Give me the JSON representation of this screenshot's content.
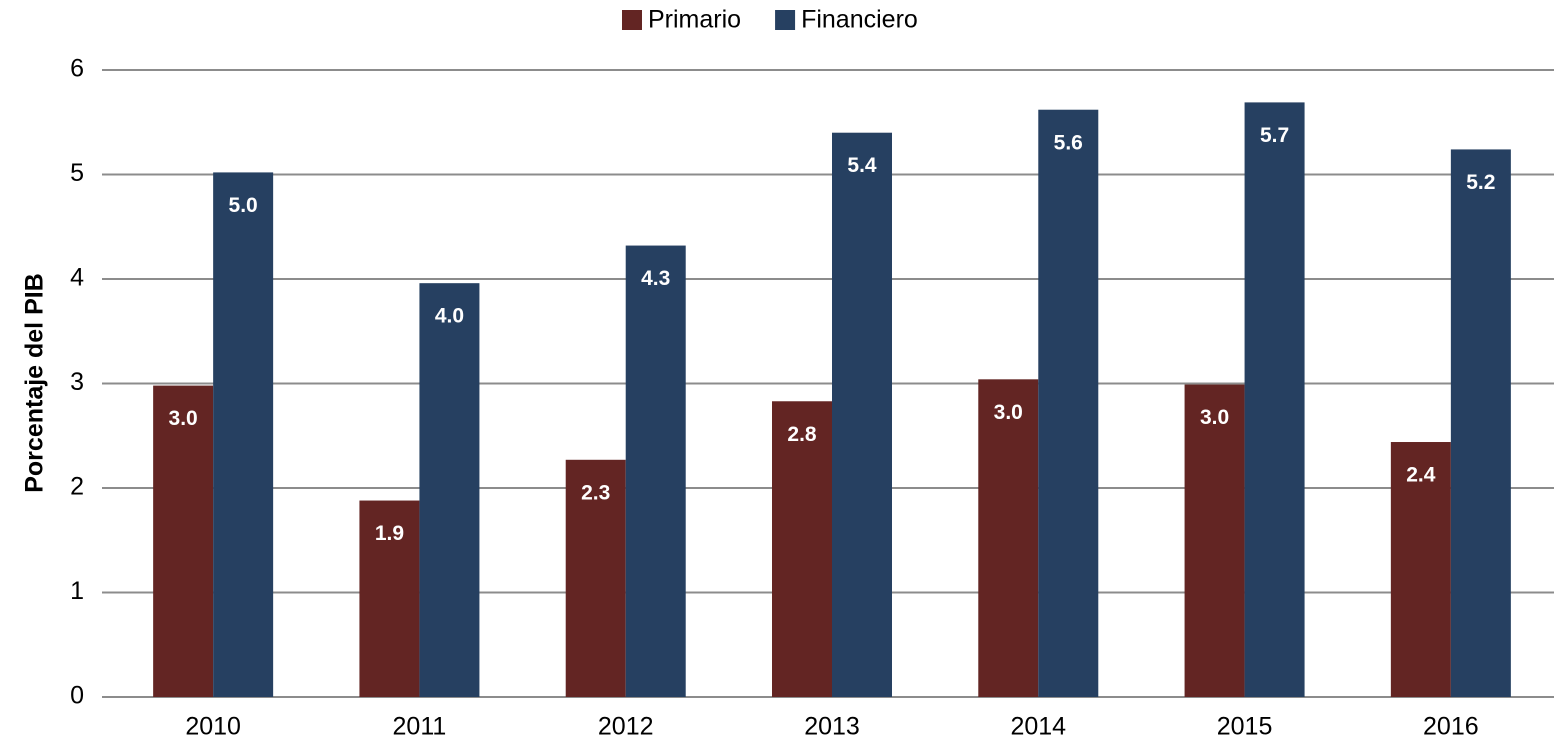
{
  "chart_data": {
    "type": "bar",
    "y_axis_label": "Porcentaje del PIB",
    "categories": [
      "2010",
      "2011",
      "2012",
      "2013",
      "2014",
      "2015",
      "2016"
    ],
    "series": [
      {
        "name": "Primario",
        "color": "#632523",
        "values": [
          2.98,
          1.88,
          2.27,
          2.83,
          3.04,
          2.99,
          2.44
        ],
        "value_labels": [
          "3.0",
          "1.9",
          "2.3",
          "2.8",
          "3.0",
          "3.0",
          "2.4"
        ]
      },
      {
        "name": "Financiero",
        "color": "#264061",
        "values": [
          5.02,
          3.96,
          4.32,
          5.4,
          5.62,
          5.69,
          5.24
        ],
        "value_labels": [
          "5.0",
          "4.0",
          "4.3",
          "5.4",
          "5.6",
          "5.7",
          "5.2"
        ]
      }
    ],
    "ylim": [
      0,
      6
    ],
    "yticks": [
      0,
      1,
      2,
      3,
      4,
      5,
      6
    ],
    "grid": true,
    "legend": "top"
  }
}
